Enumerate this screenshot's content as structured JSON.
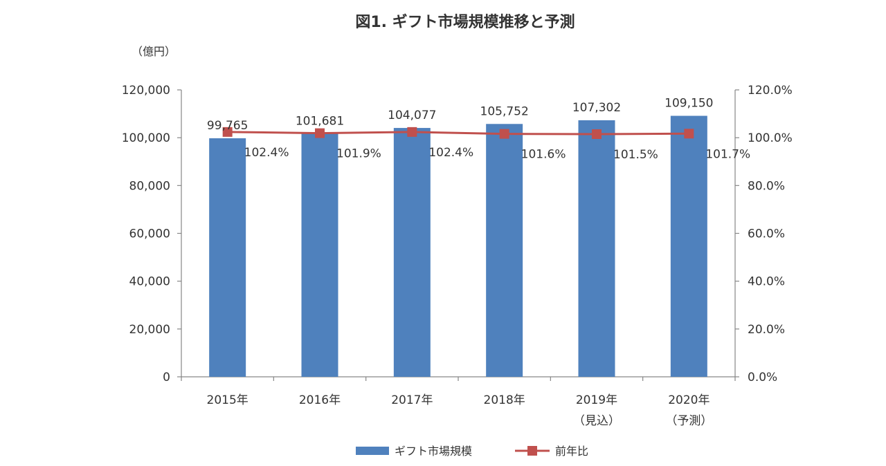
{
  "chart_data": {
    "type": "bar",
    "title": "図1. ギフト市場規模推移と予測",
    "y_unit_label": "（億円）",
    "categories": [
      "2015年",
      "2016年",
      "2017年",
      "2018年",
      "2019年",
      "2020年"
    ],
    "category_notes": [
      "",
      "",
      "",
      "",
      "（見込）",
      "（予測）"
    ],
    "series": [
      {
        "name": "ギフト市場規模",
        "type": "bar",
        "axis": "left",
        "color": "#4f81bd",
        "values": [
          99765,
          101681,
          104077,
          105752,
          107302,
          109150
        ],
        "labels": [
          "99,765",
          "101,681",
          "104,077",
          "105,752",
          "107,302",
          "109,150"
        ]
      },
      {
        "name": "前年比",
        "type": "line",
        "axis": "right",
        "color": "#c0504d",
        "marker": "square",
        "values": [
          102.4,
          101.9,
          102.4,
          101.6,
          101.5,
          101.7
        ],
        "labels": [
          "102.4%",
          "101.9%",
          "102.4%",
          "101.6%",
          "101.5%",
          "101.7%"
        ]
      }
    ],
    "y_left": {
      "min": 0,
      "max": 120000,
      "ticks": [
        0,
        20000,
        40000,
        60000,
        80000,
        100000,
        120000
      ],
      "tick_labels": [
        "0",
        "20,000",
        "40,000",
        "60,000",
        "80,000",
        "100,000",
        "120,000"
      ]
    },
    "y_right": {
      "min": 0,
      "max": 120,
      "ticks": [
        0,
        20,
        40,
        60,
        80,
        100,
        120
      ],
      "tick_labels": [
        "0.0%",
        "20.0%",
        "40.0%",
        "60.0%",
        "80.0%",
        "100.0%",
        "120.0%"
      ]
    },
    "grid": false,
    "legend_position": "bottom"
  }
}
